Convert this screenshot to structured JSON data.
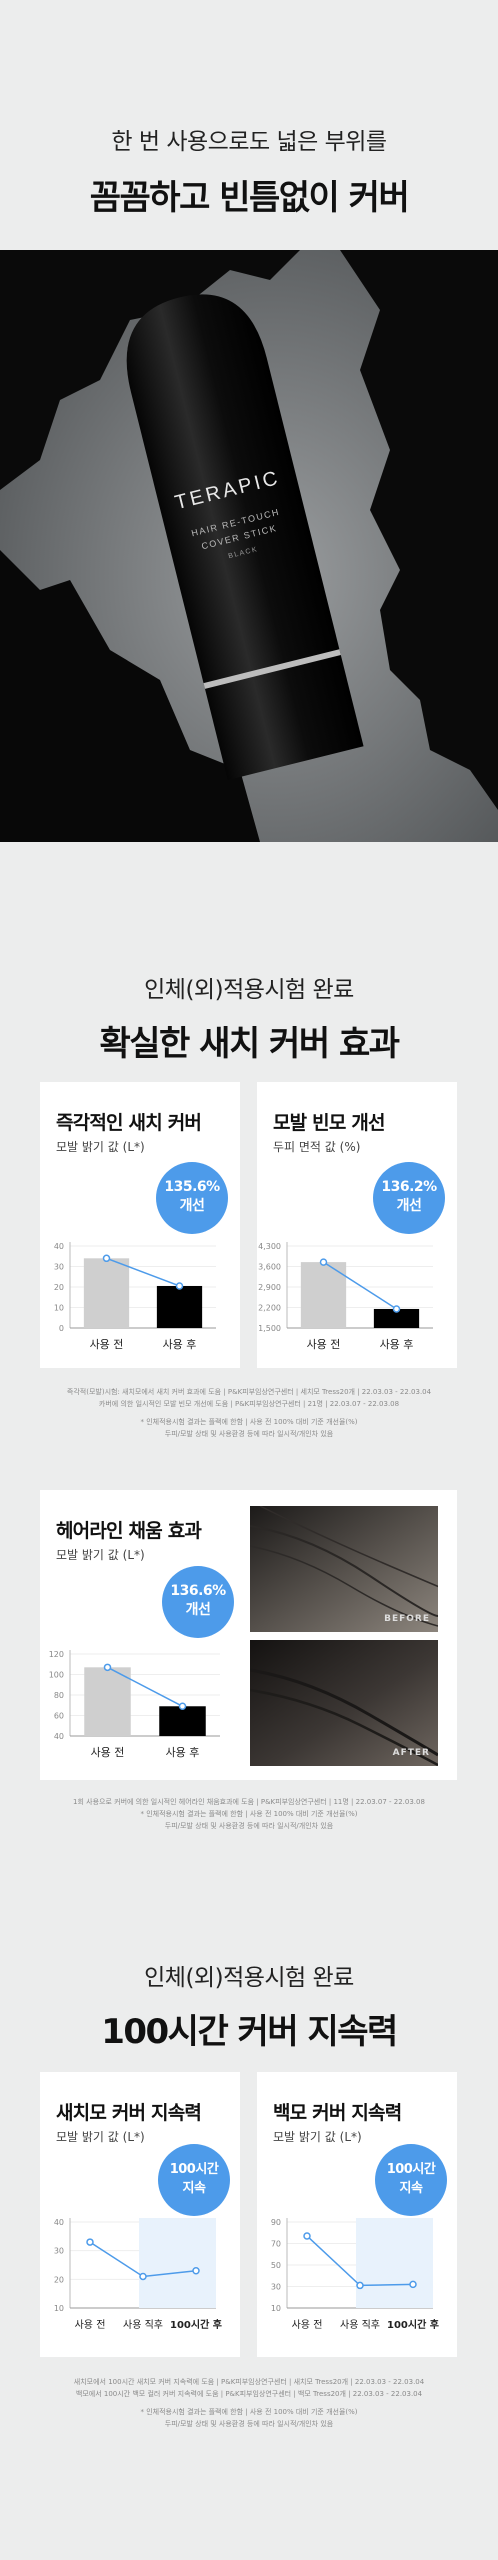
{
  "section1": {
    "line1": "한 번 사용으로도 넓은 부위를",
    "line2": "꼼꼼하고 빈틈없이 커버"
  },
  "product": {
    "brand": "TERAPIC",
    "line_a": "HAIR RE-TOUCH",
    "line_b": "COVER STICK",
    "line_c": "BLACK"
  },
  "section2": {
    "line1": "인체(외)적용시험 완료",
    "line2": "확실한 새치 커버 효과"
  },
  "card1": {
    "title": "즉각적인 새치 커버",
    "subtitle": "모발 밝기 값 (L*)",
    "badge_value": "135.6%",
    "badge_text": "개선",
    "chart_data": {
      "type": "bar",
      "categories": [
        "사용 전",
        "사용 후"
      ],
      "values": [
        34,
        20.5
      ],
      "yticks": [
        "0",
        "10",
        "20",
        "30",
        "40"
      ],
      "ylim": [
        0,
        40
      ],
      "colors": [
        "#cfcfcf",
        "#000000"
      ]
    }
  },
  "card2": {
    "title": "모발 빈모 개선",
    "subtitle": "두피 면적 값 (%)",
    "badge_value": "136.2%",
    "badge_text": "개선",
    "chart_data": {
      "type": "bar",
      "categories": [
        "사용 전",
        "사용 후"
      ],
      "values": [
        3750,
        2150
      ],
      "yticks": [
        "1,500",
        "2,200",
        "2,900",
        "3,600",
        "4,300"
      ],
      "ylim": [
        1500,
        4300
      ],
      "colors": [
        "#cfcfcf",
        "#000000"
      ]
    }
  },
  "footnote1": {
    "l1": "즉각적(모발)시험: 새치모에서 새치 커버 효과에 도움 | P&K피부임상연구센터 | 세치모 Tress20개 | 22.03.03 - 22.03.04",
    "l2": "카버에 의한 일시적인 모발 빈모 개선에 도움 | P&K피부임상연구센터 | 21명 | 22.03.07 - 22.03.08",
    "l3": "* 인체적용시험 결과는 플랙에 한함 | 사용 전 100% 대비 기준 개선율(%)",
    "l4": "두피/모발 상태 및 사용환경 등에 따라 일시적/개인차 있음"
  },
  "card3": {
    "title": "헤어라인 채움 효과",
    "subtitle": "모발 밝기 값 (L*)",
    "badge_value": "136.6%",
    "badge_text": "개선",
    "before_label": "BEFORE",
    "after_label": "AFTER",
    "chart_data": {
      "type": "bar",
      "categories": [
        "사용 전",
        "사용 후"
      ],
      "values": [
        107,
        69
      ],
      "yticks": [
        "40",
        "60",
        "80",
        "100",
        "120"
      ],
      "ylim": [
        40,
        120
      ],
      "colors": [
        "#cfcfcf",
        "#000000"
      ]
    }
  },
  "footnote2": {
    "l1": "1회 사용으로 커버에 의한 일시적인 헤어라인 채움효과에 도움 | P&K피부임상연구센터 | 11명 | 22.03.07 - 22.03.08",
    "l2": "* 인체적용시험 결과는 플랙에 한함 | 사용 전 100% 대비 기준 개선율(%)",
    "l3": "두피/모발 상태 및 사용환경 등에 따라 일시적/개인차 있음"
  },
  "section3": {
    "line1": "인체(외)적용시험 완료",
    "line2": "100시간 커버 지속력"
  },
  "card4": {
    "title": "새치모 커버 지속력",
    "subtitle": "모발 밝기 값 (L*)",
    "badge_value": "100시간",
    "badge_text": "지속",
    "chart_data": {
      "type": "line",
      "categories": [
        "사용 전",
        "사용 직후",
        "100시간 후"
      ],
      "values": [
        33,
        21,
        23
      ],
      "yticks": [
        "10",
        "20",
        "30",
        "40"
      ],
      "ylim": [
        10,
        40
      ]
    }
  },
  "card5": {
    "title": "백모 커버 지속력",
    "subtitle": "모발 밝기 값 (L*)",
    "badge_value": "100시간",
    "badge_text": "지속",
    "chart_data": {
      "type": "line",
      "categories": [
        "사용 전",
        "사용 직후",
        "100시간 후"
      ],
      "values": [
        77,
        31,
        32
      ],
      "yticks": [
        "10",
        "30",
        "50",
        "70",
        "90"
      ],
      "ylim": [
        10,
        90
      ]
    }
  },
  "footnote3": {
    "l1": "새치모에서 100시간 새치모 커버 지속력에 도움 | P&K피부임상연구센터 | 새치모 Tress20개 | 22.03.03 - 22.03.04",
    "l2": "백모에서 100시간 백모 컬러 커버 지속력에 도움 | P&K피부임상연구센터 | 백모 Tress20개 | 22.03.03 - 22.03.04",
    "l3": "* 인체적용시험 결과는 플랙에 한함 | 사용 전 100% 대비 기준 개선율(%)",
    "l4": "두피/모발 상태 및 사용환경 등에 따라 일시적/개인차 있음"
  }
}
